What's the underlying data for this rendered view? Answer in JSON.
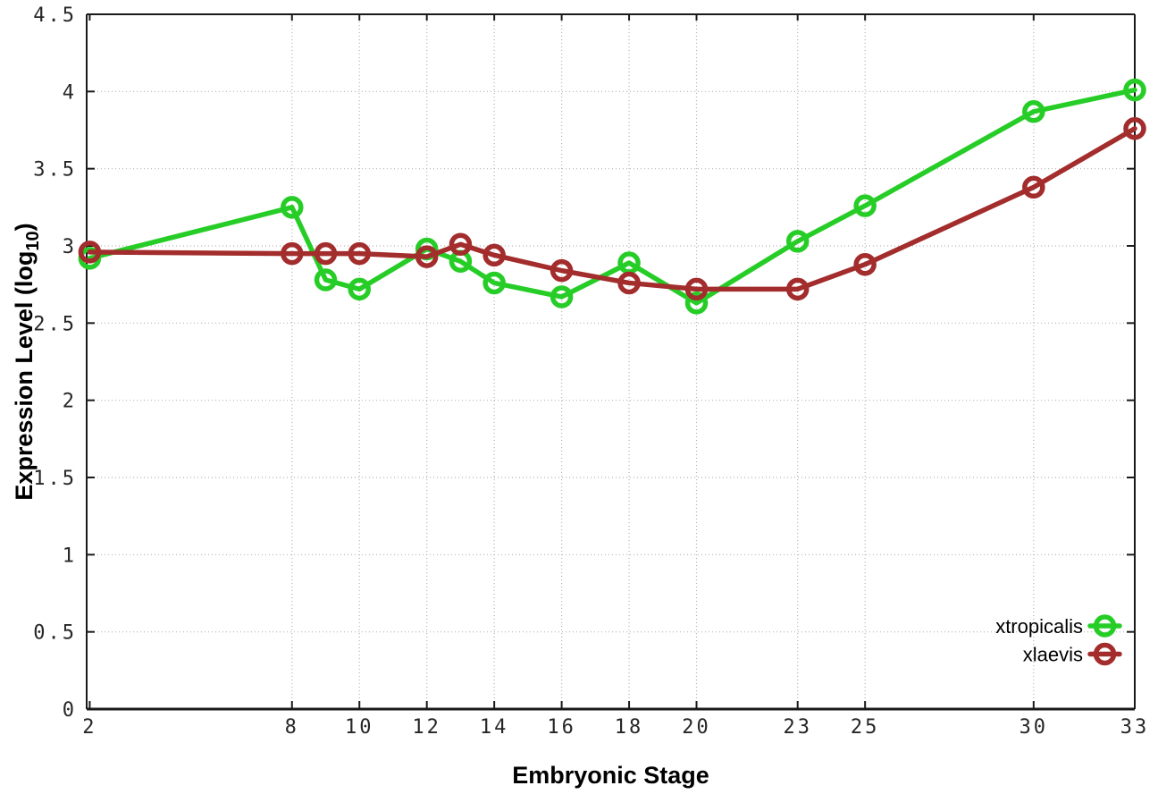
{
  "chart_data": {
    "type": "line",
    "title": "",
    "xlabel": "Embryonic Stage",
    "ylabel": "Expression Level (log10)",
    "ylabel_main": "Expression Level (log",
    "ylabel_sub": "10",
    "ylabel_close": ")",
    "xlim": [
      1.91,
      33
    ],
    "ylim": [
      0,
      4.5
    ],
    "grid": true,
    "legend_position": "inside-right-bottom",
    "x_ticks": [
      2,
      8,
      10,
      12,
      14,
      16,
      18,
      20,
      23,
      25,
      30,
      33
    ],
    "x_tick_labels": [
      "2",
      "8",
      "10",
      "12",
      "14",
      "16",
      "18",
      "20",
      "23",
      "25",
      "30",
      "33"
    ],
    "y_ticks": [
      0,
      0.5,
      1,
      1.5,
      2,
      2.5,
      3,
      3.5,
      4,
      4.5
    ],
    "y_tick_labels": [
      "0",
      "0.5",
      "1",
      "1.5",
      "2",
      "2.5",
      "3",
      "3.5",
      "4",
      "4.5"
    ],
    "x": [
      2,
      8,
      9,
      10,
      12,
      13,
      14,
      16,
      18,
      20,
      23,
      25,
      30,
      33
    ],
    "series": [
      {
        "name": "xtropicalis",
        "color": "#27cd27",
        "values": [
          2.92,
          3.25,
          2.78,
          2.72,
          2.98,
          2.9,
          2.76,
          2.67,
          2.89,
          2.63,
          3.03,
          3.26,
          3.87,
          4.01
        ]
      },
      {
        "name": "xlaevis",
        "color": "#a32c2c",
        "values": [
          2.96,
          2.95,
          2.95,
          2.95,
          2.93,
          3.01,
          2.94,
          2.84,
          2.76,
          2.72,
          2.72,
          2.88,
          3.38,
          3.76
        ]
      }
    ],
    "grid_color": "#b3b3b3",
    "border_color": "#1a1a1a"
  }
}
